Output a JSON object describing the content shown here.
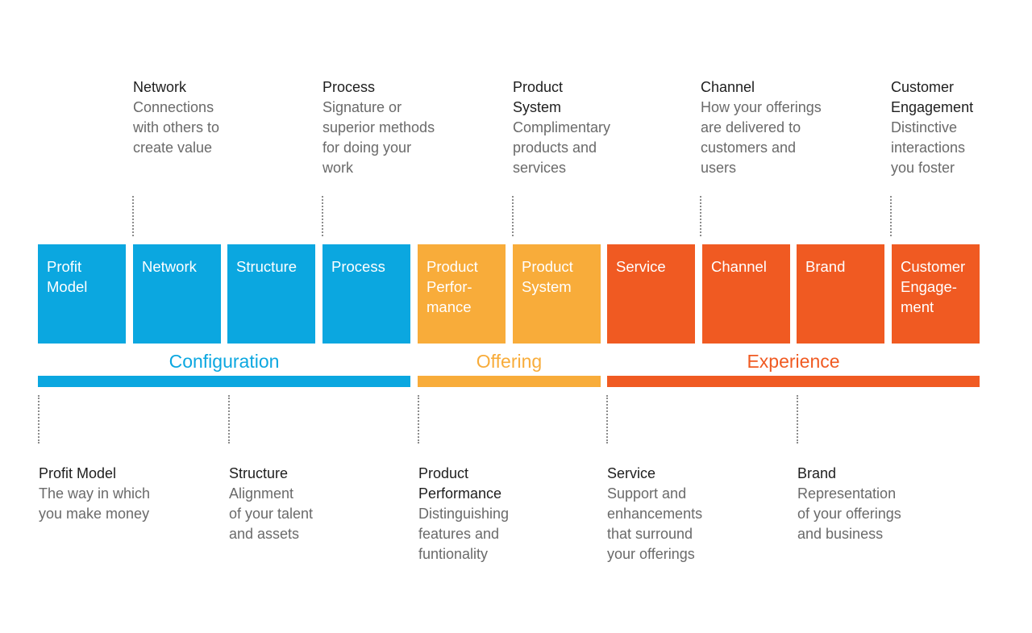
{
  "boxes": [
    {
      "label": "Profit\nModel",
      "color": "#0ba7e0"
    },
    {
      "label": "Network",
      "color": "#0ba7e0"
    },
    {
      "label": "Structure",
      "color": "#0ba7e0"
    },
    {
      "label": "Process",
      "color": "#0ba7e0"
    },
    {
      "label": "Product\nPerfor-\nmance",
      "color": "#f8ac3a"
    },
    {
      "label": "Product\nSystem",
      "color": "#f8ac3a"
    },
    {
      "label": "Service",
      "color": "#f05a22"
    },
    {
      "label": "Channel",
      "color": "#f05a22"
    },
    {
      "label": "Brand",
      "color": "#f05a22"
    },
    {
      "label": "Customer\nEngage-\nment",
      "color": "#f05a22"
    }
  ],
  "groups": [
    {
      "label": "Configuration",
      "color": "#0ba7e0"
    },
    {
      "label": "Offering",
      "color": "#f8ac3a"
    },
    {
      "label": "Experience",
      "color": "#f05a22"
    }
  ],
  "top_descriptions": [
    {
      "title": "Network",
      "text": "Connections\nwith others to\ncreate value"
    },
    {
      "title": "Process",
      "text": "Signature or\nsuperior methods\nfor doing your\nwork"
    },
    {
      "title": "Product\nSystem",
      "text": "Complimentary\nproducts and\nservices"
    },
    {
      "title": "Channel",
      "text": "How your offerings\nare delivered to\ncustomers and\nusers"
    },
    {
      "title": "Customer\nEngagement",
      "text": "Distinctive\ninteractions\nyou foster"
    }
  ],
  "bottom_descriptions": [
    {
      "title": "Profit Model",
      "text": "The way in which\nyou make money"
    },
    {
      "title": "Structure",
      "text": "Alignment\nof your talent\nand assets"
    },
    {
      "title": "Product\nPerformance",
      "text": "Distinguishing\nfeatures and\nfuntionality"
    },
    {
      "title": "Service",
      "text": "Support and\nenhancements\nthat surround\nyour offerings"
    },
    {
      "title": "Brand",
      "text": "Representation\nof your offerings\nand business"
    }
  ]
}
